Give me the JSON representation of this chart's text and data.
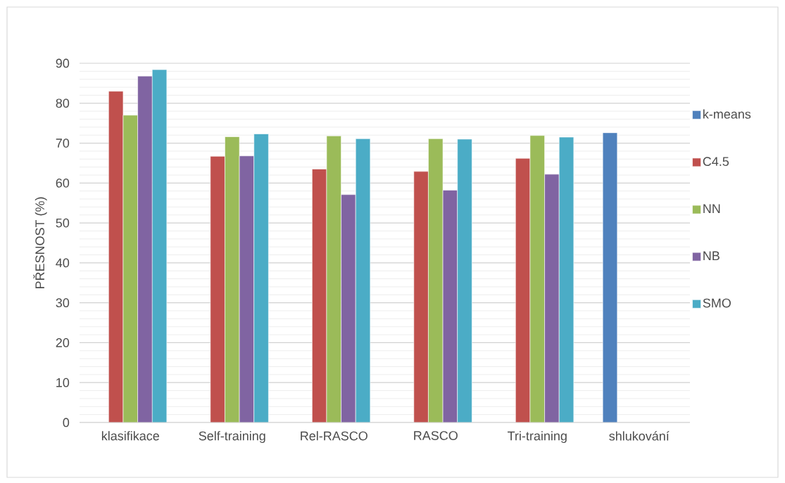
{
  "chart_data": {
    "type": "bar",
    "ylabel": "PŘESNOST (%)",
    "categories": [
      "klasifikace",
      "Self-training",
      "Rel-RASCO",
      "RASCO",
      "Tri-training",
      "shlukování"
    ],
    "series": [
      {
        "name": "k-means",
        "color": "#4f81bd",
        "values": [
          null,
          null,
          null,
          null,
          null,
          72.6
        ]
      },
      {
        "name": "C4.5",
        "color": "#c0504d",
        "values": [
          83.0,
          66.7,
          63.5,
          62.9,
          66.2,
          null
        ]
      },
      {
        "name": "NN",
        "color": "#9bbb59",
        "values": [
          77.0,
          71.6,
          71.8,
          71.1,
          71.9,
          null
        ]
      },
      {
        "name": "NB",
        "color": "#8064a2",
        "values": [
          86.8,
          66.8,
          57.1,
          58.2,
          62.2,
          null
        ]
      },
      {
        "name": "SMO",
        "color": "#4bacc6",
        "values": [
          88.4,
          72.3,
          71.1,
          71.0,
          71.5,
          null
        ]
      }
    ],
    "ylim": [
      0,
      90
    ],
    "yticks": [
      0,
      10,
      20,
      30,
      40,
      50,
      60,
      70,
      80,
      90
    ],
    "grid": "y",
    "legend": "right"
  }
}
